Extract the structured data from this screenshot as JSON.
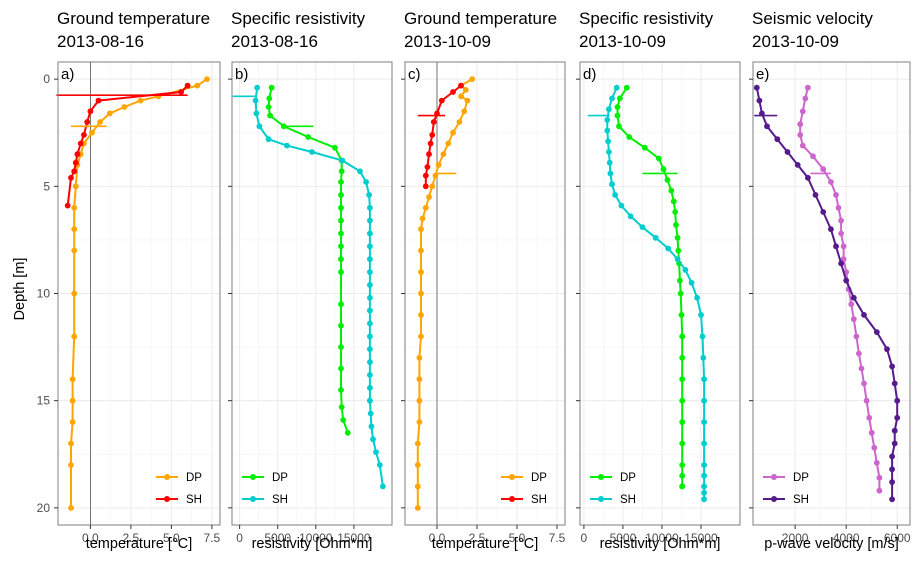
{
  "figure": {
    "y_axis_label": "Depth [m]",
    "y_ticks": [
      "0",
      "5",
      "10",
      "15",
      "20"
    ]
  },
  "chart_data": [
    {
      "type": "line",
      "panel": "a)",
      "title": "Ground temperature",
      "subtitle": "2013-08-16",
      "xlabel": "temperature [°C]",
      "xlim": [
        -2,
        8
      ],
      "x_ticks": [
        0,
        2.5,
        5,
        7.5
      ],
      "x_tick_labels": [
        "0.0",
        "2.5",
        "5.0",
        "7.5"
      ],
      "ylim": [
        -0.8,
        20.8
      ],
      "y_reversed": true,
      "grid": true,
      "zero_line": 0,
      "legend_position": "bottom-right",
      "series": [
        {
          "name": "DP",
          "color": "#FFA500",
          "x": [
            7.2,
            6.6,
            4.2,
            3.1,
            2.1,
            1.2,
            0.6,
            0.1,
            -0.4,
            -0.6,
            -0.8,
            -0.9,
            -1.0,
            -1.0,
            -1.0,
            -1.0,
            -1.0,
            -1.1,
            -1.1,
            -1.1,
            -1.2,
            -1.2,
            -1.2
          ],
          "y": [
            0.0,
            0.3,
            0.8,
            1.0,
            1.3,
            1.6,
            2.0,
            2.5,
            3.0,
            3.5,
            4.0,
            5.0,
            6.0,
            7.0,
            8.0,
            10.0,
            12.0,
            14.0,
            15.0,
            16.0,
            17.0,
            18.0,
            20.0
          ]
        },
        {
          "name": "SH",
          "color": "#FF0000",
          "x": [
            6.0,
            5.6,
            0.5,
            0.0,
            -0.2,
            -0.4,
            -0.6,
            -0.8,
            -0.9,
            -1.0,
            -1.2,
            -1.4
          ],
          "y": [
            0.3,
            0.6,
            1.0,
            1.5,
            2.0,
            2.6,
            3.0,
            3.5,
            3.9,
            4.3,
            4.6,
            5.9
          ]
        }
      ],
      "marker_lines": [
        {
          "color": "#FF0000",
          "y": 0.75,
          "x": [
            -2.1,
            6.0
          ]
        },
        {
          "color": "#FFA500",
          "y": 2.2,
          "x": [
            -1.2,
            1.0
          ]
        }
      ]
    },
    {
      "type": "line",
      "panel": "b)",
      "title": "Specific resistivity",
      "subtitle": "2013-08-16",
      "xlabel": "resistivity [Ohm*m]",
      "xlim": [
        -1000,
        20000
      ],
      "x_ticks": [
        0,
        5000,
        10000,
        15000
      ],
      "x_tick_labels": [
        "0",
        "5000",
        "10000",
        "15000"
      ],
      "ylim": [
        -0.8,
        20.8
      ],
      "y_reversed": true,
      "grid": true,
      "legend_position": "bottom-left",
      "series": [
        {
          "name": "DP",
          "color": "#00EE00",
          "x": [
            4200,
            3900,
            3800,
            4000,
            5800,
            9000,
            12500,
            13400,
            13400,
            13300,
            13300,
            13300,
            13300,
            13300,
            13300,
            13300,
            13300,
            13300,
            13300,
            13300,
            13300,
            13300,
            13400,
            13600,
            14200
          ],
          "y": [
            0.4,
            0.9,
            1.3,
            1.7,
            2.2,
            2.7,
            3.2,
            3.8,
            4.3,
            4.8,
            5.4,
            6.0,
            6.6,
            7.2,
            7.8,
            8.4,
            9.0,
            10.5,
            11.5,
            12.5,
            13.5,
            14.5,
            15.3,
            15.9,
            16.5
          ],
          "short": true
        },
        {
          "name": "SH",
          "color": "#00CDCD",
          "x": [
            2300,
            2100,
            2200,
            2600,
            3800,
            6200,
            9500,
            13500,
            15800,
            16600,
            17000,
            17100,
            17100,
            17100,
            17100,
            17100,
            17100,
            17100,
            17100,
            17100,
            17100,
            17100,
            17100,
            17100,
            17100,
            17100,
            17100,
            17200,
            17300,
            17500,
            17900,
            18400,
            18800
          ],
          "y": [
            0.4,
            1.0,
            1.6,
            2.2,
            2.8,
            3.1,
            3.4,
            3.8,
            4.3,
            4.8,
            5.4,
            6.0,
            6.6,
            7.2,
            7.8,
            8.4,
            9.0,
            9.6,
            10.2,
            10.8,
            11.4,
            12.0,
            12.6,
            13.2,
            13.8,
            14.4,
            15.0,
            15.6,
            16.2,
            16.8,
            17.4,
            18.0,
            19.0
          ]
        }
      ],
      "marker_lines": [
        {
          "color": "#00CDCD",
          "y": 0.8,
          "x": [
            -900,
            2200
          ]
        },
        {
          "color": "#00EE00",
          "y": 2.2,
          "x": [
            5800,
            9700
          ]
        }
      ]
    },
    {
      "type": "line",
      "panel": "c)",
      "title": "Ground temperature",
      "subtitle": "2013-10-09",
      "xlabel": "temperature [°C]",
      "xlim": [
        -2,
        8
      ],
      "x_ticks": [
        0,
        2.5,
        5,
        7.5
      ],
      "x_tick_labels": [
        "0.0",
        "2.5",
        "5.0",
        "7.5"
      ],
      "ylim": [
        -0.8,
        20.8
      ],
      "y_reversed": true,
      "grid": true,
      "zero_line": 0,
      "legend_position": "bottom-right",
      "series": [
        {
          "name": "DP",
          "color": "#FFA500",
          "x": [
            2.2,
            1.5,
            1.8,
            1.5,
            1.9,
            1.7,
            1.4,
            1.0,
            0.7,
            0.4,
            0.1,
            -0.1,
            -0.3,
            -0.5,
            -0.7,
            -0.9,
            -1.0,
            -1.0,
            -1.0,
            -1.0,
            -1.0,
            -1.0,
            -1.1,
            -1.1,
            -1.1,
            -1.1,
            -1.2,
            -1.2,
            -1.2,
            -1.2
          ],
          "y": [
            0.0,
            0.3,
            0.5,
            0.8,
            1.0,
            1.5,
            2.0,
            2.5,
            3.0,
            3.5,
            4.0,
            4.5,
            5.0,
            5.5,
            6.0,
            6.5,
            7.0,
            8.0,
            9.0,
            10.0,
            11.0,
            12.0,
            13.0,
            14.0,
            15.0,
            16.0,
            17.0,
            18.0,
            19.0,
            20.0
          ]
        },
        {
          "name": "SH",
          "color": "#FF0000",
          "x": [
            1.5,
            1.0,
            0.3,
            0.0,
            -0.2,
            -0.3,
            -0.4,
            -0.5,
            -0.6,
            -0.7,
            -0.7
          ],
          "y": [
            0.3,
            0.6,
            1.0,
            1.6,
            2.0,
            2.6,
            3.0,
            3.5,
            4.1,
            4.5,
            5.0
          ]
        }
      ],
      "marker_lines": [
        {
          "color": "#FF0000",
          "y": 1.7,
          "x": [
            -1.2,
            0.5
          ]
        },
        {
          "color": "#FFA500",
          "y": 4.4,
          "x": [
            0,
            1.2
          ]
        }
      ]
    },
    {
      "type": "line",
      "panel": "d)",
      "title": "Specific resistivity",
      "subtitle": "2013-10-09",
      "xlabel": "resistivity [Ohm*m]",
      "xlim": [
        -500,
        20000
      ],
      "x_ticks": [
        0,
        5000,
        10000,
        15000
      ],
      "x_tick_labels": [
        "0",
        "5000",
        "10000",
        "15000"
      ],
      "ylim": [
        -0.8,
        20.8
      ],
      "y_reversed": true,
      "grid": true,
      "legend_position": "bottom-left",
      "series": [
        {
          "name": "DP",
          "color": "#00EE00",
          "x": [
            5500,
            4600,
            4300,
            4300,
            4500,
            5800,
            7800,
            9600,
            10200,
            10700,
            11200,
            11500,
            11700,
            11800,
            12000,
            12100,
            12200,
            12300,
            12400,
            12500,
            12600,
            12600,
            12600,
            12600,
            12600,
            12600,
            12600,
            12600,
            12600,
            12600
          ],
          "y": [
            0.4,
            0.9,
            1.3,
            1.7,
            2.2,
            2.7,
            3.2,
            3.7,
            4.2,
            4.7,
            5.2,
            5.7,
            6.2,
            6.8,
            7.4,
            8.0,
            8.6,
            9.4,
            10.0,
            11.0,
            12.0,
            13.0,
            14.0,
            15.0,
            16.0,
            17.0,
            18.0,
            18.5,
            19.0,
            19.0
          ]
        },
        {
          "name": "SH",
          "color": "#00CDCD",
          "x": [
            4200,
            3600,
            3200,
            3000,
            3000,
            3100,
            3200,
            3300,
            3400,
            3600,
            4000,
            4800,
            6000,
            7500,
            9200,
            10800,
            12000,
            13000,
            13800,
            14500,
            15000,
            15200,
            15300,
            15400,
            15400,
            15400,
            15400,
            15400,
            15400,
            15400,
            15400,
            15400
          ],
          "y": [
            0.4,
            0.9,
            1.4,
            1.9,
            2.4,
            2.9,
            3.4,
            3.9,
            4.4,
            4.9,
            5.4,
            5.9,
            6.4,
            6.9,
            7.4,
            7.9,
            8.4,
            8.9,
            9.5,
            10.2,
            11.0,
            12.0,
            13.0,
            14.0,
            15.0,
            16.0,
            17.0,
            18.0,
            18.5,
            19.0,
            19.3,
            19.6
          ]
        }
      ],
      "marker_lines": [
        {
          "color": "#00CDCD",
          "y": 1.7,
          "x": [
            500,
            3300
          ]
        },
        {
          "color": "#00EE00",
          "y": 4.4,
          "x": [
            7500,
            12000
          ]
        }
      ]
    },
    {
      "type": "line",
      "panel": "e)",
      "title": "Seismic velocity",
      "subtitle": "2013-10-09",
      "xlabel": "p-wave velocity [m/s]",
      "xlim": [
        350,
        6500
      ],
      "x_ticks": [
        2000,
        4000,
        6000
      ],
      "x_tick_labels": [
        "2000",
        "4000",
        "6000"
      ],
      "ylim": [
        -0.8,
        20.8
      ],
      "y_reversed": true,
      "grid": true,
      "legend_position": "bottom-left",
      "series": [
        {
          "name": "DP",
          "color": "#CC66CC",
          "x": [
            2500,
            2400,
            2300,
            2200,
            2200,
            2300,
            2700,
            3100,
            3400,
            3600,
            3700,
            3800,
            3800,
            3900,
            3900,
            4000,
            4100,
            4200,
            4300,
            4400,
            4500,
            4600,
            4700,
            4800,
            4900,
            5000,
            5100,
            5200,
            5300,
            5300
          ],
          "y": [
            0.4,
            0.9,
            1.5,
            2.1,
            2.6,
            3.1,
            3.6,
            4.2,
            4.8,
            5.4,
            6.0,
            6.6,
            7.2,
            7.8,
            8.4,
            9.0,
            9.8,
            10.5,
            11.2,
            12.0,
            12.8,
            13.5,
            14.2,
            15.0,
            15.8,
            16.5,
            17.2,
            17.9,
            18.6,
            19.2
          ]
        },
        {
          "name": "SH",
          "color": "#551A8B",
          "x": [
            500,
            600,
            700,
            900,
            1300,
            1700,
            2100,
            2500,
            2800,
            3100,
            3400,
            3600,
            3800,
            4000,
            4300,
            4700,
            5200,
            5600,
            5800,
            5900,
            6000,
            6000,
            5900,
            5900,
            5800,
            5800,
            5800,
            5800
          ],
          "y": [
            0.4,
            1.0,
            1.6,
            2.2,
            2.8,
            3.4,
            4.0,
            4.6,
            5.4,
            6.2,
            7.0,
            7.8,
            8.6,
            9.4,
            10.2,
            11.0,
            11.8,
            12.6,
            13.4,
            14.2,
            15.0,
            15.8,
            16.4,
            17.0,
            17.6,
            18.2,
            18.8,
            19.6
          ]
        }
      ],
      "marker_lines": [
        {
          "color": "#551A8B",
          "y": 1.7,
          "x": [
            400,
            1300
          ]
        },
        {
          "color": "#CC66CC",
          "y": 4.4,
          "x": [
            2600,
            3400
          ]
        }
      ]
    }
  ]
}
